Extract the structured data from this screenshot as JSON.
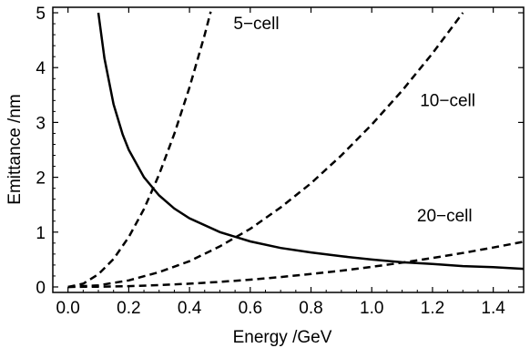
{
  "chart_data": {
    "type": "line",
    "title": "",
    "xlabel": "Energy /GeV",
    "ylabel": "Emittance /nm",
    "xlim": [
      -0.05,
      1.5
    ],
    "ylim": [
      -0.1,
      5.1
    ],
    "xticks": [
      0.0,
      0.2,
      0.4,
      0.6,
      0.8,
      1.0,
      1.2,
      1.4
    ],
    "xtick_labels": [
      "0.0",
      "0.2",
      "0.4",
      "0.6",
      "0.8",
      "1.0",
      "1.2",
      "1.4"
    ],
    "yticks": [
      0,
      1,
      2,
      3,
      4,
      5
    ],
    "ytick_labels": [
      "0",
      "1",
      "2",
      "3",
      "4",
      "5"
    ],
    "grid": false,
    "legend": "none",
    "series": [
      {
        "style": "solid",
        "x": [
          0.1,
          0.12,
          0.15,
          0.18,
          0.2,
          0.25,
          0.3,
          0.35,
          0.4,
          0.5,
          0.6,
          0.7,
          0.8,
          0.9,
          1.0,
          1.1,
          1.2,
          1.3,
          1.4,
          1.5
        ],
        "y": [
          5.0,
          4.17,
          3.33,
          2.78,
          2.5,
          2.0,
          1.67,
          1.43,
          1.25,
          1.0,
          0.83,
          0.71,
          0.63,
          0.56,
          0.5,
          0.45,
          0.42,
          0.38,
          0.36,
          0.33
        ]
      },
      {
        "style": "dashed",
        "x": [
          0.0,
          0.05,
          0.1,
          0.15,
          0.2,
          0.25,
          0.3,
          0.35,
          0.4,
          0.45,
          0.47
        ],
        "y": [
          0.0,
          0.06,
          0.23,
          0.51,
          0.91,
          1.42,
          2.05,
          2.79,
          3.64,
          4.6,
          5.02
        ]
      },
      {
        "style": "dashed",
        "x": [
          0.0,
          0.1,
          0.2,
          0.3,
          0.4,
          0.5,
          0.6,
          0.7,
          0.8,
          0.9,
          1.0,
          1.1,
          1.2,
          1.3
        ],
        "y": [
          0.0,
          0.03,
          0.12,
          0.27,
          0.47,
          0.74,
          1.06,
          1.45,
          1.89,
          2.4,
          2.96,
          3.58,
          4.26,
          5.0
        ]
      },
      {
        "style": "dashed",
        "x": [
          0.0,
          0.1,
          0.2,
          0.3,
          0.4,
          0.5,
          0.6,
          0.7,
          0.8,
          0.9,
          1.0,
          1.1,
          1.2,
          1.3,
          1.4,
          1.5
        ],
        "y": [
          0.0,
          0.004,
          0.015,
          0.033,
          0.059,
          0.092,
          0.132,
          0.18,
          0.235,
          0.297,
          0.367,
          0.444,
          0.528,
          0.62,
          0.719,
          0.825
        ]
      }
    ],
    "annotations": [
      {
        "text": "5−cell",
        "x": 0.62,
        "y": 4.7
      },
      {
        "text": "10−cell",
        "x": 1.25,
        "y": 3.3
      },
      {
        "text": "20−cell",
        "x": 1.24,
        "y": 1.2
      }
    ]
  }
}
